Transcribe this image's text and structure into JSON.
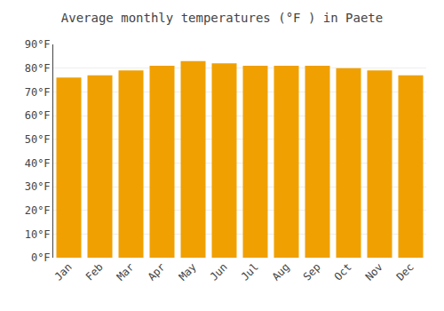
{
  "chart_data": {
    "type": "bar",
    "title": "Average monthly temperatures (°F ) in Paete",
    "categories": [
      "Jan",
      "Feb",
      "Mar",
      "Apr",
      "May",
      "Jun",
      "Jul",
      "Aug",
      "Sep",
      "Oct",
      "Nov",
      "Dec"
    ],
    "values": [
      76,
      77,
      79,
      81,
      83,
      82,
      81,
      81,
      81,
      80,
      79,
      77
    ],
    "color": "#F0A000",
    "ylim": [
      0,
      90
    ],
    "yticks": [
      {
        "value": 0,
        "label": "0°F"
      },
      {
        "value": 10,
        "label": "10°F"
      },
      {
        "value": 20,
        "label": "20°F"
      },
      {
        "value": 30,
        "label": "30°F"
      },
      {
        "value": 40,
        "label": "40°F"
      },
      {
        "value": 50,
        "label": "50°F"
      },
      {
        "value": 60,
        "label": "60°F"
      },
      {
        "value": 70,
        "label": "70°F"
      },
      {
        "value": 80,
        "label": "80°F"
      },
      {
        "value": 90,
        "label": "90°F"
      }
    ],
    "grid": true
  }
}
